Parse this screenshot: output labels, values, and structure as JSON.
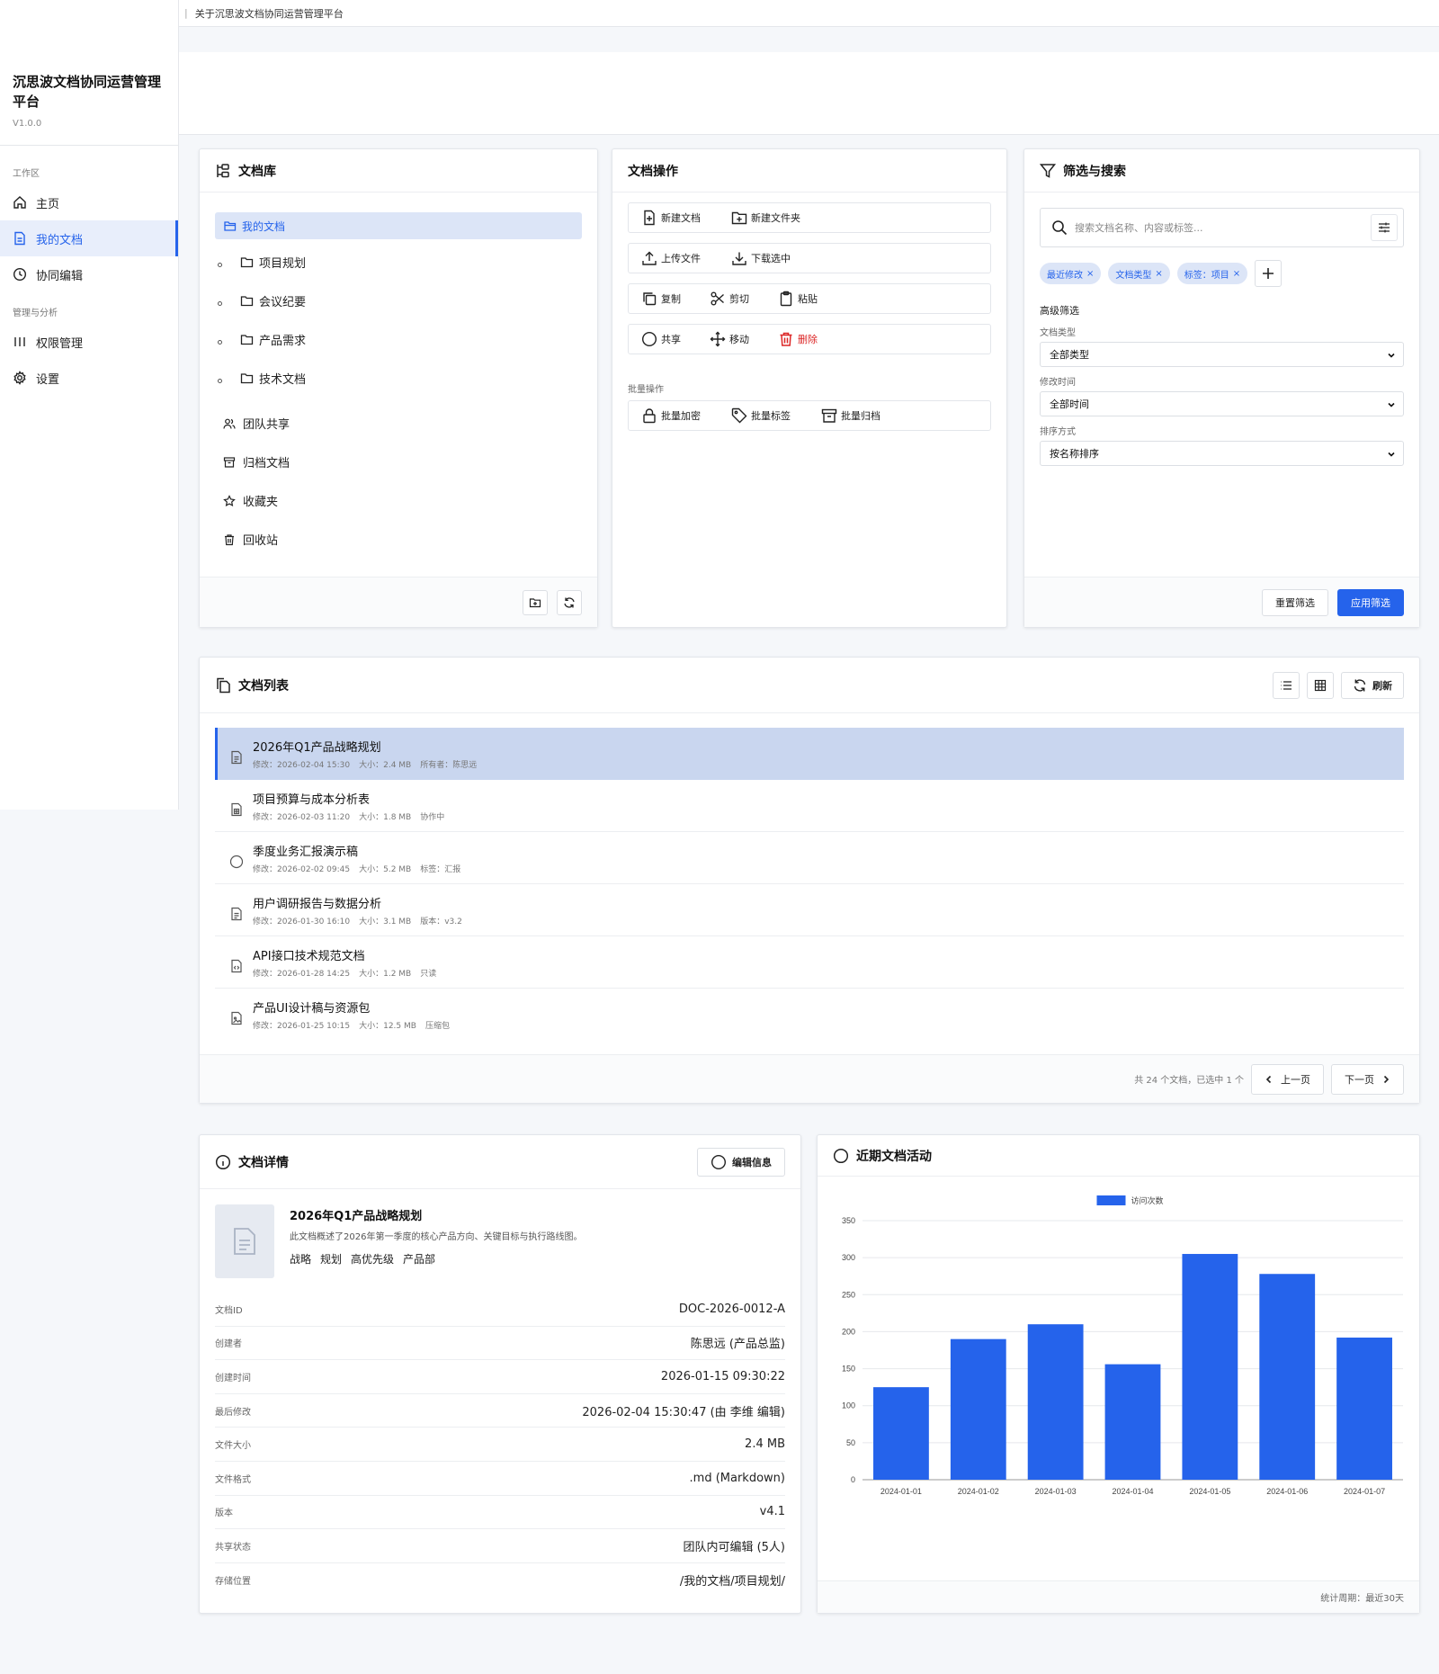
{
  "topbar": {
    "link": "关于沉思波文档协同运营管理平台"
  },
  "sidebar": {
    "title": "沉思波文档协同运营管理平台",
    "version": "V1.0.0",
    "group_work": "工作区",
    "group_manage": "管理与分析",
    "items": [
      {
        "label": "主页",
        "icon": "home-icon"
      },
      {
        "label": "我的文档",
        "icon": "document-icon",
        "active": true
      },
      {
        "label": "协同编辑",
        "icon": "clock-icon"
      },
      {
        "label": "权限管理",
        "icon": "bars-icon"
      },
      {
        "label": "设置",
        "icon": "gear-icon"
      }
    ]
  },
  "library": {
    "title": "文档库",
    "root": "我的文档",
    "folders": [
      "项目规划",
      "会议纪要",
      "产品需求",
      "技术文档"
    ],
    "others": [
      "团队共享",
      "归档文档",
      "收藏夹",
      "回收站"
    ]
  },
  "ops": {
    "title": "文档操作",
    "new_doc": "新建文档",
    "new_folder": "新建文件夹",
    "upload": "上传文件",
    "download": "下载选中",
    "copy": "复制",
    "cut": "剪切",
    "paste": "粘贴",
    "share": "共享",
    "move": "移动",
    "delete": "删除",
    "batch_title": "批量操作",
    "batch_encrypt": "批量加密",
    "batch_tag": "批量标签",
    "batch_archive": "批量归档"
  },
  "filter": {
    "title": "筛选与搜索",
    "search_placeholder": "搜索文档名称、内容或标签...",
    "chips": [
      "最近修改",
      "文档类型",
      "标签：项目"
    ],
    "advanced": "高级筛选",
    "type_label": "文档类型",
    "type_value": "全部类型",
    "time_label": "修改时间",
    "time_value": "全部时间",
    "sort_label": "排序方式",
    "sort_value": "按名称排序",
    "reset": "重置筛选",
    "apply": "应用筛选"
  },
  "doclist": {
    "title": "文档列表",
    "refresh": "刷新",
    "rows": [
      {
        "name": "2026年Q1产品战略规划",
        "modified": "修改：2026-02-04 15:30",
        "size": "大小：2.4 MB",
        "extra": "所有者：陈思远"
      },
      {
        "name": "项目预算与成本分析表",
        "modified": "修改：2026-02-03 11:20",
        "size": "大小：1.8 MB",
        "extra": "协作中"
      },
      {
        "name": "季度业务汇报演示稿",
        "modified": "修改：2026-02-02 09:45",
        "size": "大小：5.2 MB",
        "extra": "标签：汇报"
      },
      {
        "name": "用户调研报告与数据分析",
        "modified": "修改：2026-01-30 16:10",
        "size": "大小：3.1 MB",
        "extra": "版本：v3.2"
      },
      {
        "name": "API接口技术规范文档",
        "modified": "修改：2026-01-28 14:25",
        "size": "大小：1.2 MB",
        "extra": "只读"
      },
      {
        "name": "产品UI设计稿与资源包",
        "modified": "修改：2026-01-25 10:15",
        "size": "大小：12.5 MB",
        "extra": "压缩包"
      }
    ],
    "summary": "共 24 个文档，已选中 1 个",
    "prev": "上一页",
    "next": "下一页"
  },
  "detail": {
    "title": "文档详情",
    "edit": "编辑信息",
    "doc_title": "2026年Q1产品战略规划",
    "doc_desc": "此文档概述了2026年第一季度的核心产品方向、关键目标与执行路线图。",
    "tags": [
      "战略",
      "规划",
      "高优先级",
      "产品部"
    ],
    "fields": [
      {
        "k": "文档ID",
        "v": "DOC-2026-0012-A"
      },
      {
        "k": "创建者",
        "v": "陈思远 (产品总监)"
      },
      {
        "k": "创建时间",
        "v": "2026-01-15 09:30:22"
      },
      {
        "k": "最后修改",
        "v": "2026-02-04 15:30:47 (由 李维 编辑)"
      },
      {
        "k": "文件大小",
        "v": "2.4 MB"
      },
      {
        "k": "文件格式",
        "v": ".md (Markdown)"
      },
      {
        "k": "版本",
        "v": "v4.1"
      },
      {
        "k": "共享状态",
        "v": "团队内可编辑 (5人)"
      },
      {
        "k": "存储位置",
        "v": "/我的文档/项目规划/"
      }
    ]
  },
  "activity": {
    "title": "近期文档活动",
    "footer": "统计周期：最近30天"
  },
  "chart_data": {
    "type": "bar",
    "categories": [
      "2024-01-01",
      "2024-01-02",
      "2024-01-03",
      "2024-01-04",
      "2024-01-05",
      "2024-01-06",
      "2024-01-07"
    ],
    "series": [
      {
        "name": "访问次数",
        "values": [
          125,
          190,
          210,
          156,
          305,
          278,
          192
        ],
        "color": "#2563eb"
      }
    ],
    "yticks": [
      0,
      50,
      100,
      150,
      200,
      250,
      300,
      350
    ],
    "ylim": [
      0,
      350
    ],
    "legend": "top-center",
    "grid": true
  }
}
